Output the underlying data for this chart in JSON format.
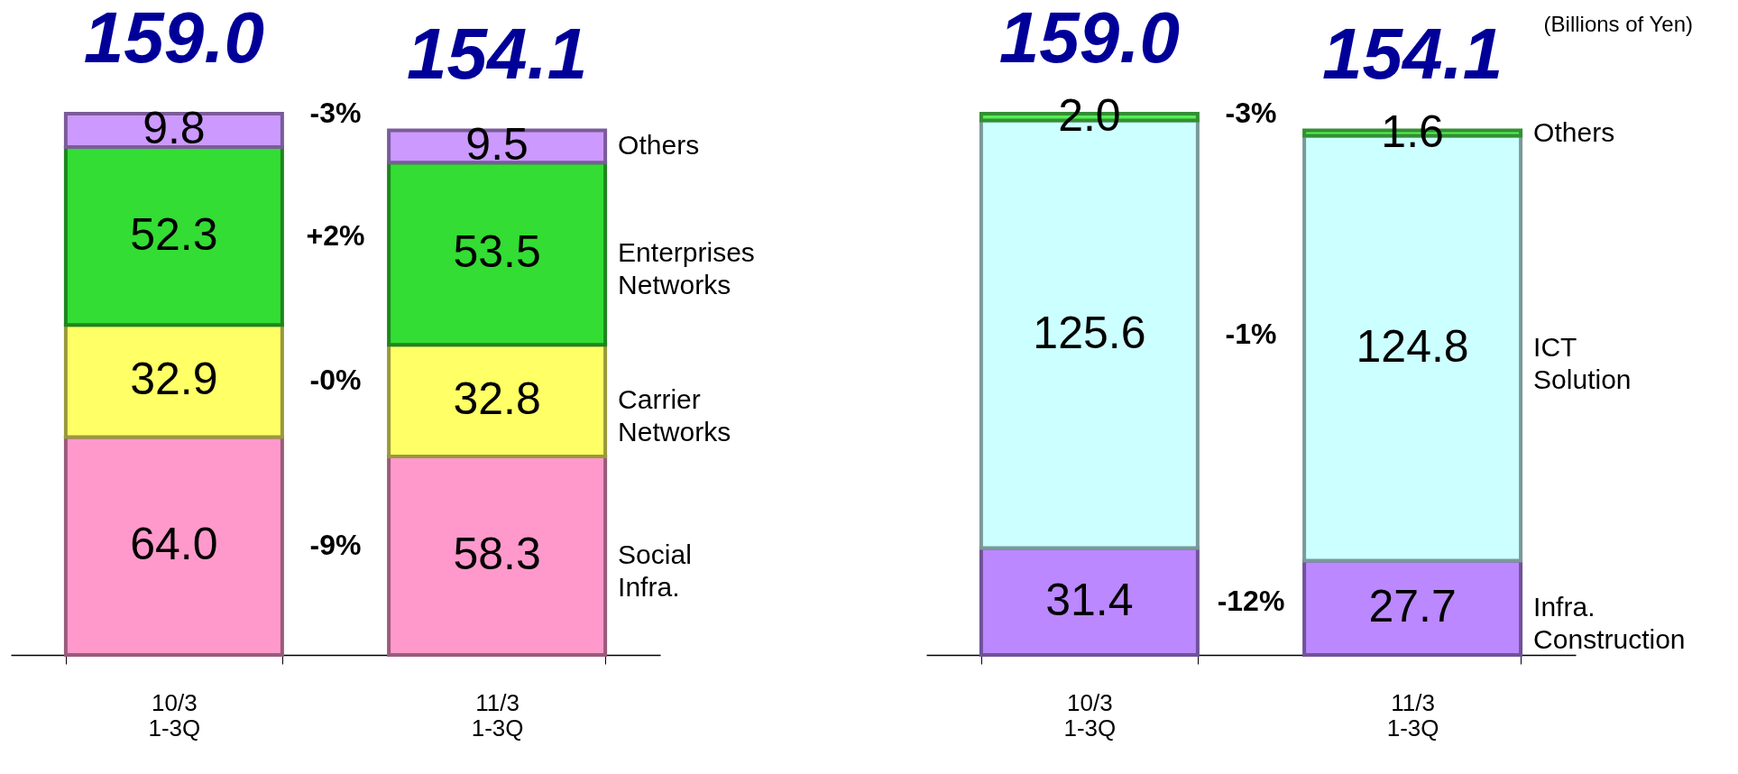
{
  "chart_data": [
    {
      "type": "bar",
      "stacked": true,
      "categories": [
        "10/3\n1-3Q",
        "11/3\n1-3Q"
      ],
      "legend": false,
      "grid": false,
      "totals": [
        "159.0",
        "154.1"
      ],
      "series": [
        {
          "name": "Social Infra.",
          "color": "#ff99cc",
          "values": [
            64.0,
            58.3
          ],
          "value_labels": [
            "64.0",
            "58.3"
          ]
        },
        {
          "name": "Carrier Networks",
          "color": "#ffff66",
          "values": [
            32.9,
            32.8
          ],
          "value_labels": [
            "32.9",
            "32.8"
          ]
        },
        {
          "name": "Enterprises Networks",
          "color": "#33dd33",
          "values": [
            52.3,
            53.5
          ],
          "value_labels": [
            "52.3",
            "53.5"
          ]
        },
        {
          "name": "Others",
          "color": "#cc99ff",
          "values": [
            9.8,
            9.5
          ],
          "value_labels": [
            "9.8",
            "9.5"
          ]
        }
      ],
      "annotations": [
        "-3%",
        "-9%",
        "-0%",
        "+2%"
      ]
    },
    {
      "type": "bar",
      "stacked": true,
      "categories": [
        "10/3\n1-3Q",
        "11/3\n1-3Q"
      ],
      "legend": false,
      "grid": false,
      "totals": [
        "159.0",
        "154.1"
      ],
      "series": [
        {
          "name": "Infra. Construction",
          "color": "#bb88ff",
          "values": [
            31.4,
            27.7
          ],
          "value_labels": [
            "31.4",
            "27.7"
          ]
        },
        {
          "name": "ICT Solution",
          "color": "#ccffff",
          "values": [
            125.6,
            124.8
          ],
          "value_labels": [
            "125.6",
            "124.8"
          ]
        },
        {
          "name": "Others",
          "color": "#55ee55",
          "values": [
            2.0,
            1.6
          ],
          "value_labels": [
            "2.0",
            "1.6"
          ]
        }
      ],
      "annotations": [
        "-3%",
        "-12%",
        "-1%",
        "(Billions of Yen)"
      ]
    }
  ]
}
